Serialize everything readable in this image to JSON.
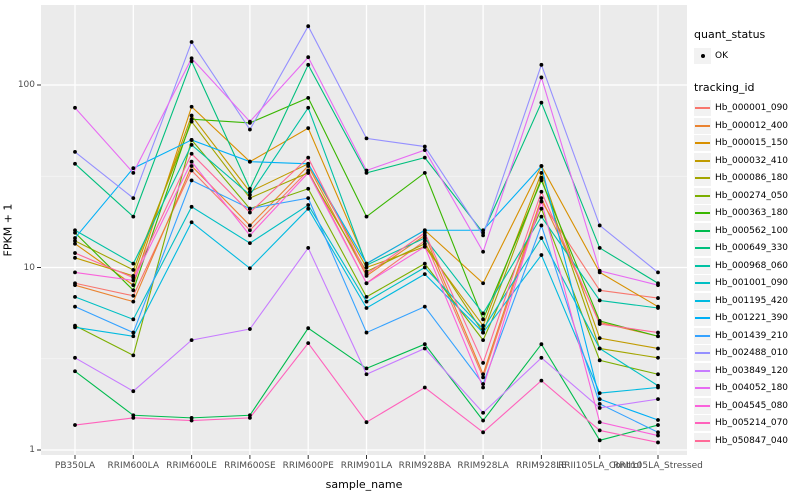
{
  "panel": {
    "background_color": "#EBEBEB",
    "grid_major_color": "#FFFFFF",
    "grid_minor_color": "#F7F7F7",
    "point_color": "#000000",
    "tick_color": "#333333",
    "tick_label_color": "#4D4D4D"
  },
  "legend": {
    "quant_status_title": "quant_status",
    "quant_status_items": [
      {
        "label": "OK",
        "marker": "point"
      }
    ],
    "tracking_id_title": "tracking_id",
    "key_fill": "#F2F2F2"
  },
  "chart_data": {
    "type": "line",
    "title": "",
    "xlabel": "sample_name",
    "ylabel": "FPKM + 1",
    "y_scale": "log10",
    "y_ticks": [
      1,
      10,
      100
    ],
    "y_minor_ticks": [
      3.1623,
      31.623
    ],
    "ylim": [
      0.94,
      274
    ],
    "grid": true,
    "legend_position": "right",
    "categories": [
      "PB350LA",
      "RRIM600LA",
      "RRIM600LE",
      "RRIM600SE",
      "RRIM600PE",
      "RRIM901LA",
      "RRIM928BA",
      "RRIM928LA",
      "RRIM928LE",
      "RRII105LA_Control",
      "RRII105LA_Stressed"
    ],
    "series": [
      {
        "name": "Hb_000001_090",
        "color": "#F8766D",
        "values": [
          8.2,
          7.0,
          34,
          16,
          34,
          8.2,
          14,
          2.5,
          23,
          7.5,
          6.8
        ]
      },
      {
        "name": "Hb_000012_400",
        "color": "#EA8331",
        "values": [
          8.0,
          6.5,
          36,
          17,
          36,
          9.0,
          15,
          2.6,
          24,
          5.0,
          4.2
        ]
      },
      {
        "name": "Hb_000015_150",
        "color": "#D89000",
        "values": [
          13.5,
          8.0,
          76,
          38,
          58,
          10.5,
          16,
          8.2,
          36,
          9.4,
          6.1
        ]
      },
      {
        "name": "Hb_000032_410",
        "color": "#C09B00",
        "values": [
          11.3,
          9.0,
          68,
          26,
          37,
          10.0,
          13,
          4.8,
          33,
          4.1,
          3.6
        ]
      },
      {
        "name": "Hb_000086_180",
        "color": "#A3A500",
        "values": [
          14,
          9.7,
          63,
          24,
          33,
          9.5,
          13.5,
          4.4,
          31,
          3.6,
          3.2
        ]
      },
      {
        "name": "Hb_000274_050",
        "color": "#7CAE00",
        "values": [
          4.8,
          3.3,
          50,
          21,
          27,
          6.9,
          10.5,
          4.0,
          21,
          3.1,
          2.6
        ]
      },
      {
        "name": "Hb_000363_180",
        "color": "#39B600",
        "values": [
          15.5,
          7.5,
          65,
          62,
          85,
          19,
          33,
          5.2,
          30,
          5.1,
          4.2
        ]
      },
      {
        "name": "Hb_000562_100",
        "color": "#00BB4E",
        "values": [
          2.7,
          1.55,
          1.5,
          1.55,
          4.65,
          2.8,
          3.8,
          1.45,
          3.8,
          1.13,
          1.37
        ]
      },
      {
        "name": "Hb_000649_330",
        "color": "#00BF7D",
        "values": [
          37,
          19,
          135,
          27,
          129,
          33,
          40,
          15.5,
          80,
          12.8,
          8.2
        ]
      },
      {
        "name": "Hb_000968_060",
        "color": "#00C1A3",
        "values": [
          16,
          10.5,
          47,
          25,
          75,
          10.3,
          14.5,
          5.6,
          19,
          6.6,
          6.0
        ]
      },
      {
        "name": "Hb_001001_090",
        "color": "#00BFC4",
        "values": [
          6.9,
          5.2,
          21.5,
          13.6,
          22,
          6.5,
          10,
          4.6,
          14.5,
          3.6,
          2.25
        ]
      },
      {
        "name": "Hb_001195_420",
        "color": "#00BAE0",
        "values": [
          4.7,
          4.2,
          17.7,
          9.9,
          21,
          6.0,
          9.2,
          4.4,
          11.7,
          2.05,
          2.2
        ]
      },
      {
        "name": "Hb_001221_390",
        "color": "#00B0F6",
        "values": [
          14.5,
          35,
          50,
          38,
          37,
          10.5,
          16,
          16,
          36,
          1.9,
          1.46
        ]
      },
      {
        "name": "Hb_001439_210",
        "color": "#35A2FF",
        "values": [
          6.1,
          4.4,
          30,
          21,
          24,
          4.4,
          6.1,
          2.3,
          17,
          1.79,
          1.25
        ]
      },
      {
        "name": "Hb_002488_010",
        "color": "#9590FF",
        "values": [
          43,
          24,
          172,
          57,
          210,
          51,
          46,
          15,
          129,
          17,
          9.4
        ]
      },
      {
        "name": "Hb_003849_120",
        "color": "#C77CFF",
        "values": [
          3.2,
          2.1,
          4.0,
          4.6,
          12.8,
          2.6,
          3.6,
          1.6,
          3.2,
          1.7,
          1.9
        ]
      },
      {
        "name": "Hb_004052_180",
        "color": "#E76BF3",
        "values": [
          75,
          33,
          140,
          63,
          142,
          34,
          44,
          12.2,
          110,
          9.6,
          8.0
        ]
      },
      {
        "name": "Hb_004545_080",
        "color": "#FA62DB",
        "values": [
          9.4,
          8.5,
          38,
          15,
          33,
          8.2,
          13,
          2.2,
          23,
          1.42,
          1.2
        ]
      },
      {
        "name": "Hb_005214_070",
        "color": "#FF62BC",
        "values": [
          1.37,
          1.5,
          1.45,
          1.5,
          3.85,
          1.42,
          2.2,
          1.25,
          2.4,
          1.28,
          1.1
        ]
      },
      {
        "name": "Hb_050847_040",
        "color": "#FF6A98",
        "values": [
          12,
          8.8,
          42,
          20,
          40,
          9.2,
          15.5,
          3.0,
          26,
          4.9,
          4.4
        ]
      }
    ]
  }
}
